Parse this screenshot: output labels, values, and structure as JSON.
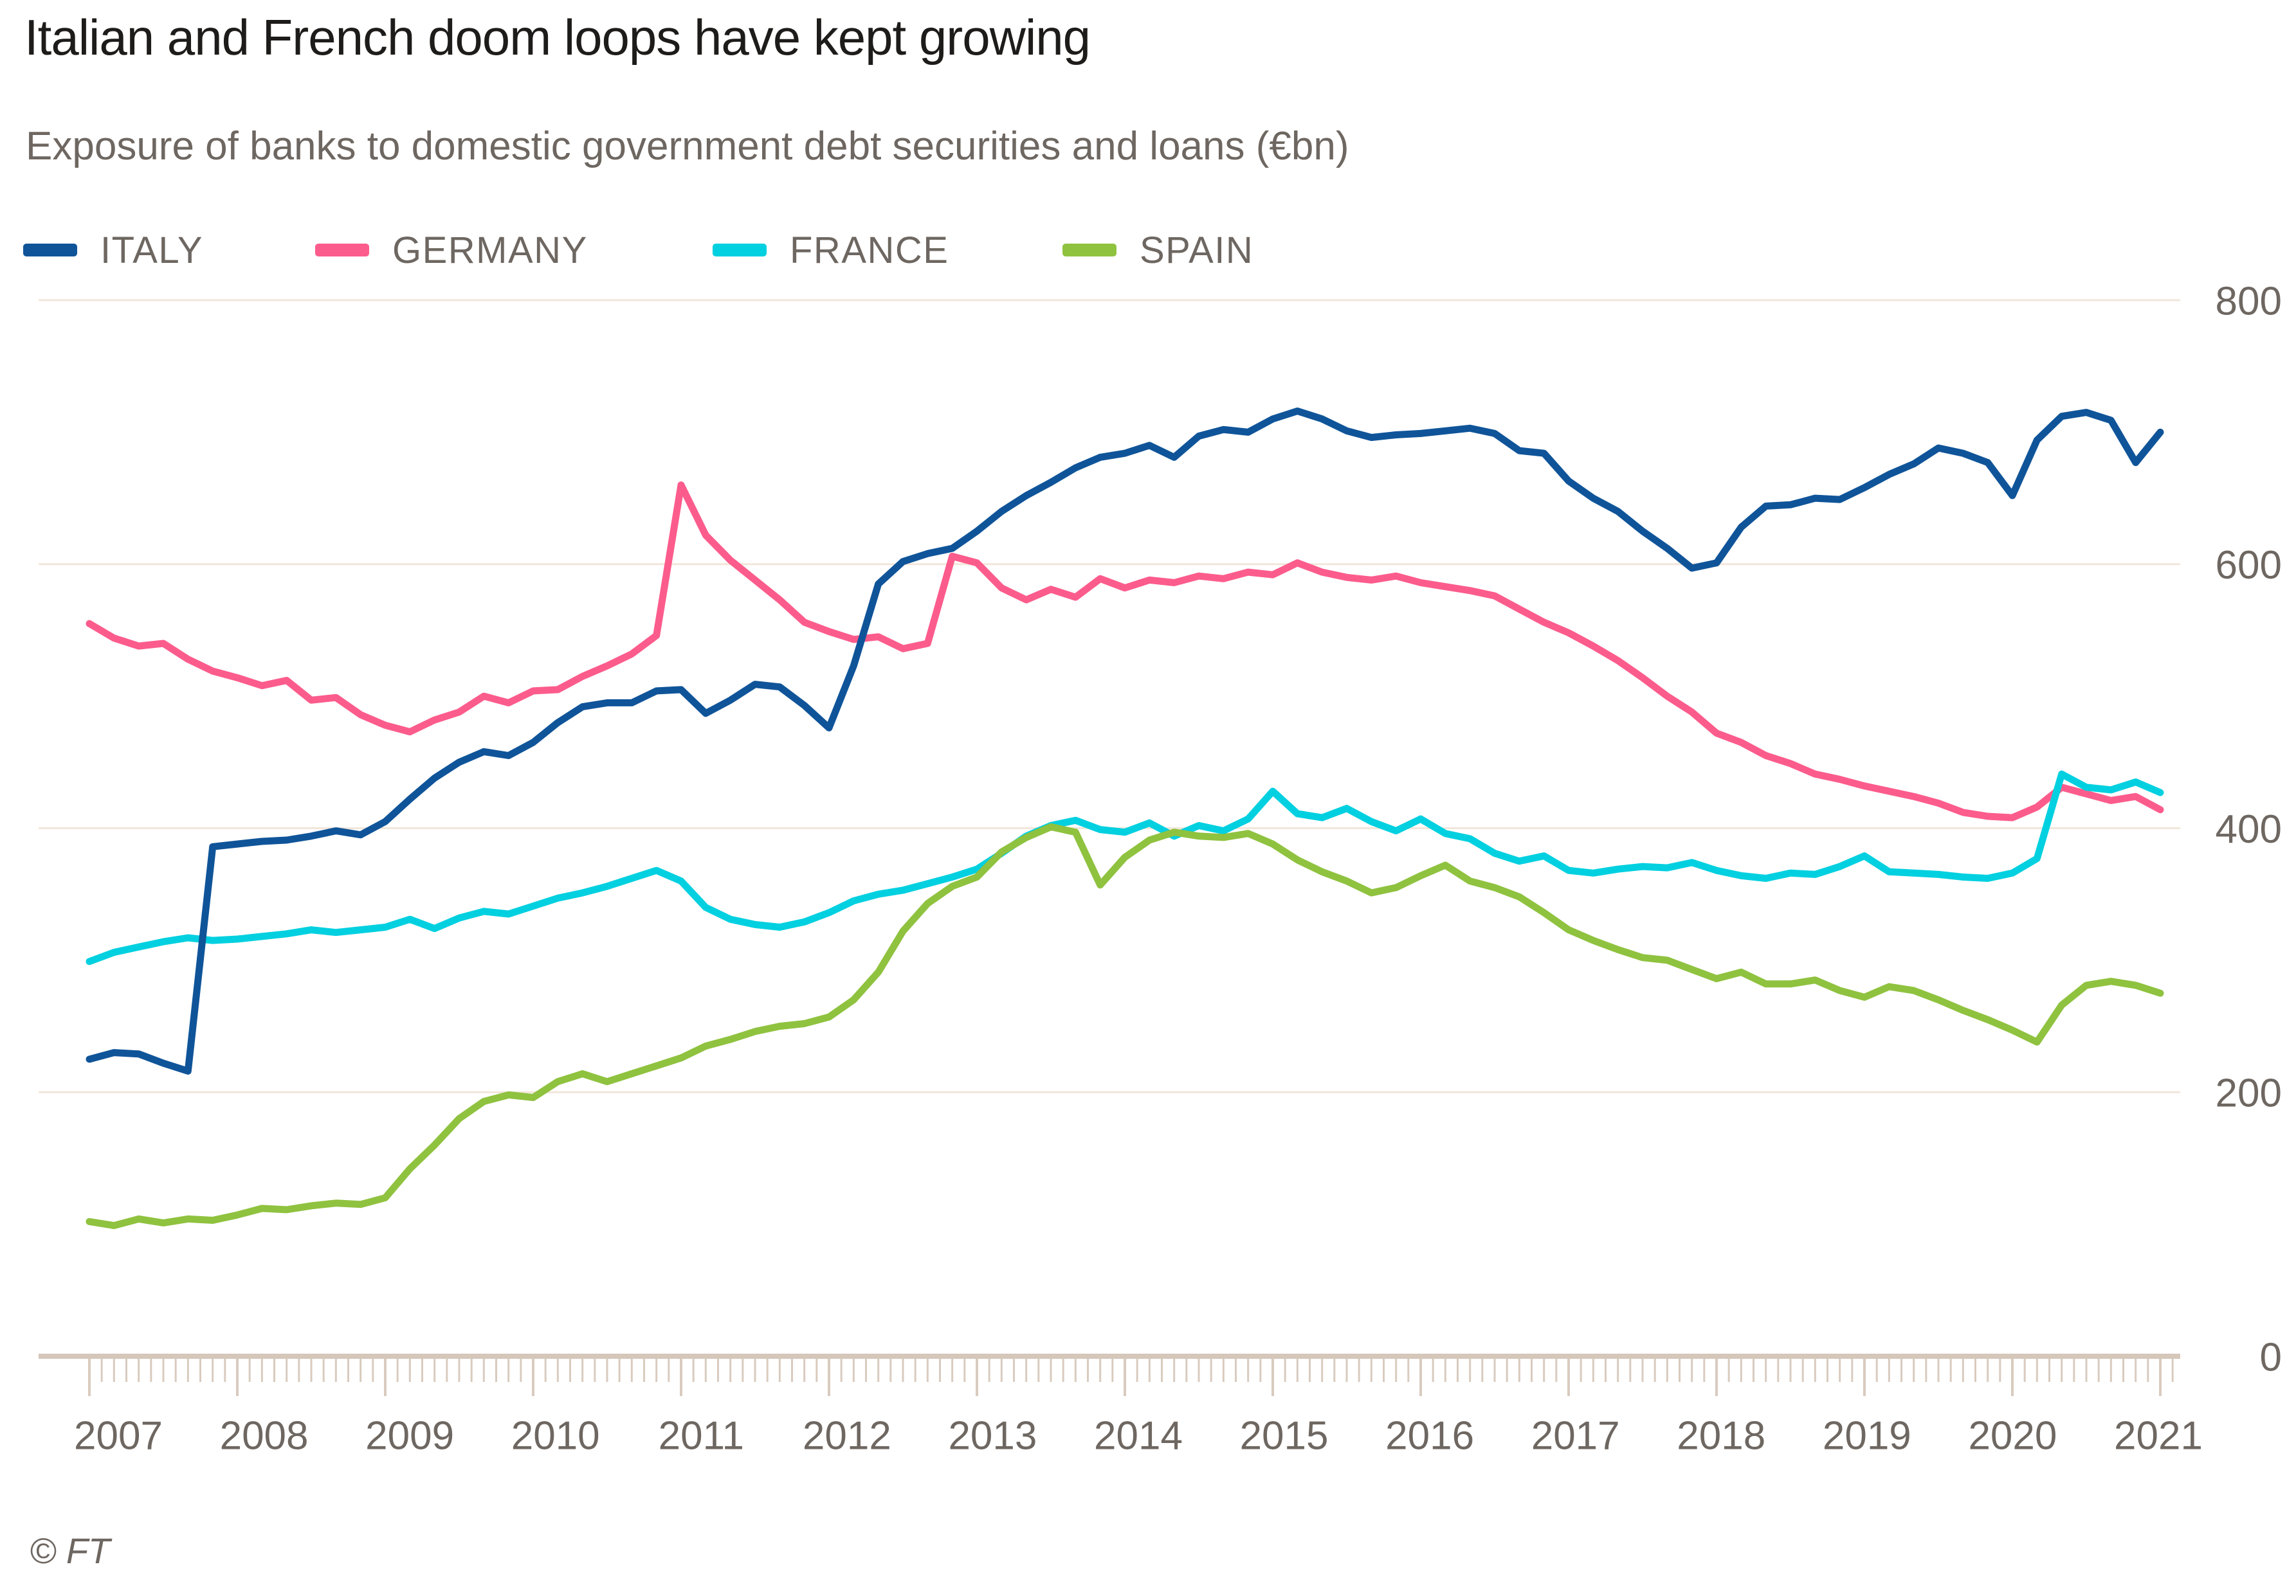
{
  "title": "Italian and French doom loops have kept growing",
  "subtitle": "Exposure of banks to domestic government debt securities and loans (€bn)",
  "footer": {
    "credit": "© FT"
  },
  "legend": {
    "items": [
      {
        "label": "ITALY",
        "color": "#0f5499"
      },
      {
        "label": "GERMANY",
        "color": "#fc5c8c"
      },
      {
        "label": "FRANCE",
        "color": "#00d0e0"
      },
      {
        "label": "SPAIN",
        "color": "#8fc23f"
      }
    ]
  },
  "chart_data": {
    "type": "line",
    "title": "Italian and French doom loops have kept growing",
    "xlabel": "",
    "ylabel": "Exposure of banks to domestic government debt securities and loans (€bn)",
    "unit": "€bn",
    "ylim": [
      0,
      800
    ],
    "y_ticks": [
      0,
      200,
      400,
      600,
      800
    ],
    "grid": "horizontal",
    "legend_position": "top",
    "x_start_year": 2007,
    "x_step_months": 2,
    "x_tick_years": [
      2007,
      2008,
      2009,
      2010,
      2011,
      2012,
      2013,
      2014,
      2015,
      2016,
      2017,
      2018,
      2019,
      2020,
      2021
    ],
    "series": [
      {
        "name": "ITALY",
        "color": "#0f5499",
        "z": 4,
        "values": [
          225,
          230,
          229,
          222,
          216,
          386,
          388,
          390,
          391,
          394,
          398,
          395,
          405,
          422,
          438,
          450,
          458,
          455,
          465,
          480,
          492,
          495,
          495,
          504,
          505,
          487,
          497,
          509,
          507,
          493,
          476,
          523,
          585,
          602,
          608,
          612,
          625,
          640,
          652,
          662,
          673,
          681,
          684,
          690,
          681,
          697,
          702,
          700,
          710,
          716,
          710,
          701,
          696,
          698,
          699,
          701,
          703,
          699,
          686,
          684,
          663,
          650,
          640,
          625,
          612,
          597,
          601,
          628,
          644,
          645,
          650,
          649,
          658,
          668,
          676,
          688,
          684,
          677,
          652,
          694,
          712,
          715,
          709,
          677,
          700
        ]
      },
      {
        "name": "GERMANY",
        "color": "#fc5c8c",
        "z": 1,
        "values": [
          555,
          544,
          538,
          540,
          528,
          519,
          514,
          508,
          512,
          497,
          499,
          486,
          478,
          473,
          482,
          488,
          500,
          495,
          504,
          505,
          515,
          523,
          532,
          546,
          660,
          622,
          603,
          588,
          573,
          556,
          549,
          543,
          545,
          536,
          540,
          606,
          601,
          582,
          573,
          581,
          575,
          589,
          582,
          588,
          586,
          591,
          589,
          594,
          592,
          601,
          594,
          590,
          588,
          591,
          586,
          583,
          580,
          576,
          566,
          556,
          548,
          538,
          527,
          514,
          500,
          488,
          472,
          465,
          455,
          449,
          441,
          437,
          432,
          428,
          424,
          419,
          412,
          409,
          408,
          416,
          431,
          426,
          421,
          424,
          414
        ]
      },
      {
        "name": "FRANCE",
        "color": "#00d0e0",
        "z": 2,
        "values": [
          299,
          306,
          310,
          314,
          317,
          315,
          316,
          318,
          320,
          323,
          321,
          323,
          325,
          331,
          324,
          332,
          337,
          335,
          341,
          347,
          351,
          356,
          362,
          368,
          360,
          340,
          331,
          327,
          325,
          329,
          336,
          345,
          350,
          353,
          358,
          363,
          369,
          381,
          394,
          402,
          406,
          399,
          397,
          404,
          394,
          402,
          398,
          407,
          428,
          411,
          408,
          415,
          405,
          398,
          407,
          396,
          392,
          381,
          375,
          379,
          368,
          366,
          369,
          371,
          370,
          374,
          368,
          364,
          362,
          366,
          365,
          371,
          379,
          367,
          366,
          365,
          363,
          362,
          366,
          377,
          441,
          431,
          429,
          435,
          427
        ]
      },
      {
        "name": "SPAIN",
        "color": "#8fc23f",
        "z": 3,
        "values": [
          102,
          99,
          104,
          101,
          104,
          103,
          107,
          112,
          111,
          114,
          116,
          115,
          120,
          142,
          160,
          180,
          193,
          198,
          196,
          208,
          214,
          208,
          214,
          220,
          226,
          235,
          240,
          246,
          250,
          252,
          257,
          270,
          291,
          322,
          343,
          356,
          363,
          382,
          393,
          401,
          397,
          357,
          378,
          391,
          397,
          394,
          393,
          396,
          388,
          376,
          367,
          360,
          351,
          355,
          364,
          372,
          360,
          355,
          348,
          336,
          323,
          315,
          308,
          302,
          300,
          293,
          286,
          291,
          282,
          282,
          285,
          277,
          272,
          280,
          277,
          270,
          262,
          255,
          247,
          238,
          266,
          281,
          284,
          281,
          275
        ]
      }
    ]
  }
}
